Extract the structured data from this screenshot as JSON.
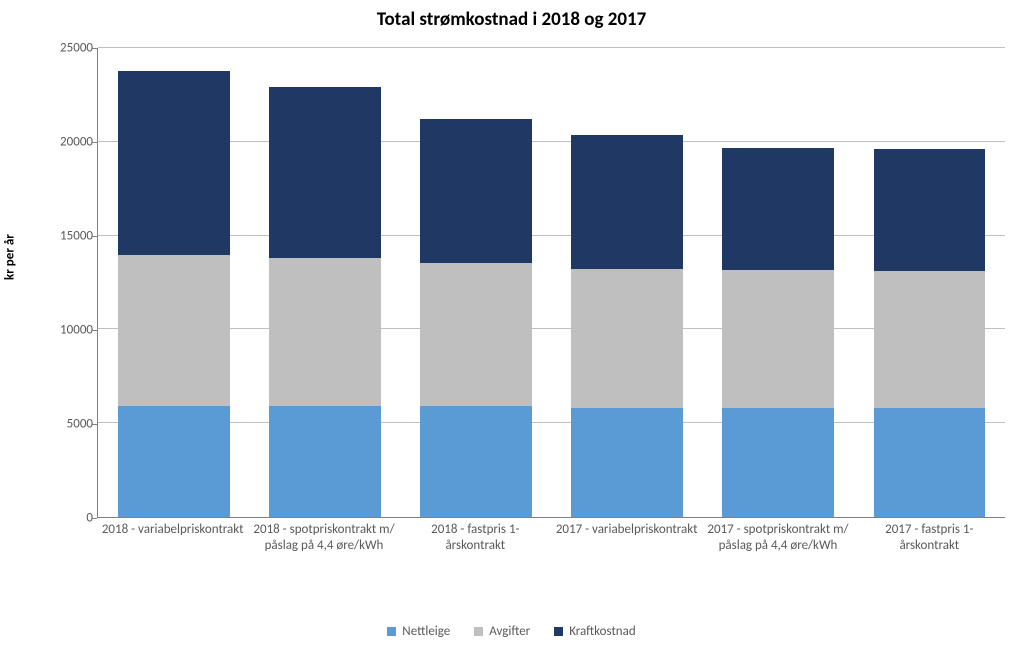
{
  "chart": {
    "type": "stacked-bar",
    "title": "Total strømkostnad i 2018 og 2017",
    "title_fontsize": 19,
    "y_axis_label": "kr per år",
    "y_axis_label_fontsize": 13,
    "ylim": [
      0,
      25000
    ],
    "ytick_step": 5000,
    "tick_fontsize": 13,
    "x_label_fontsize": 13,
    "legend_fontsize": 13,
    "background_color": "#ffffff",
    "grid_color": "#bfbfbf",
    "axis_color": "#808080",
    "text_color": "#595959",
    "bar_width_ratio": 0.74,
    "categories": [
      "2018 - variabelpriskontrakt",
      "2018 - spotpriskontrakt m/ påslag på 4,4 øre/kWh",
      "2018 - fastpris 1-årskontrakt",
      "2017 - variabelpriskontrakt",
      "2017 - spotpriskontrakt m/ påslag på 4,4 øre/kWh",
      "2017 - fastpris 1-årskontrakt"
    ],
    "series": [
      {
        "name": "Nettleige",
        "color": "#5b9bd5",
        "values": [
          5900,
          5900,
          5900,
          5800,
          5800,
          5800
        ]
      },
      {
        "name": "Avgifter",
        "color": "#bfbfbf",
        "values": [
          8050,
          7900,
          7600,
          7400,
          7350,
          7300
        ]
      },
      {
        "name": "Kraftkostnad",
        "color": "#1f3864",
        "values": [
          9800,
          9100,
          7650,
          7100,
          6500,
          6450
        ]
      }
    ]
  }
}
